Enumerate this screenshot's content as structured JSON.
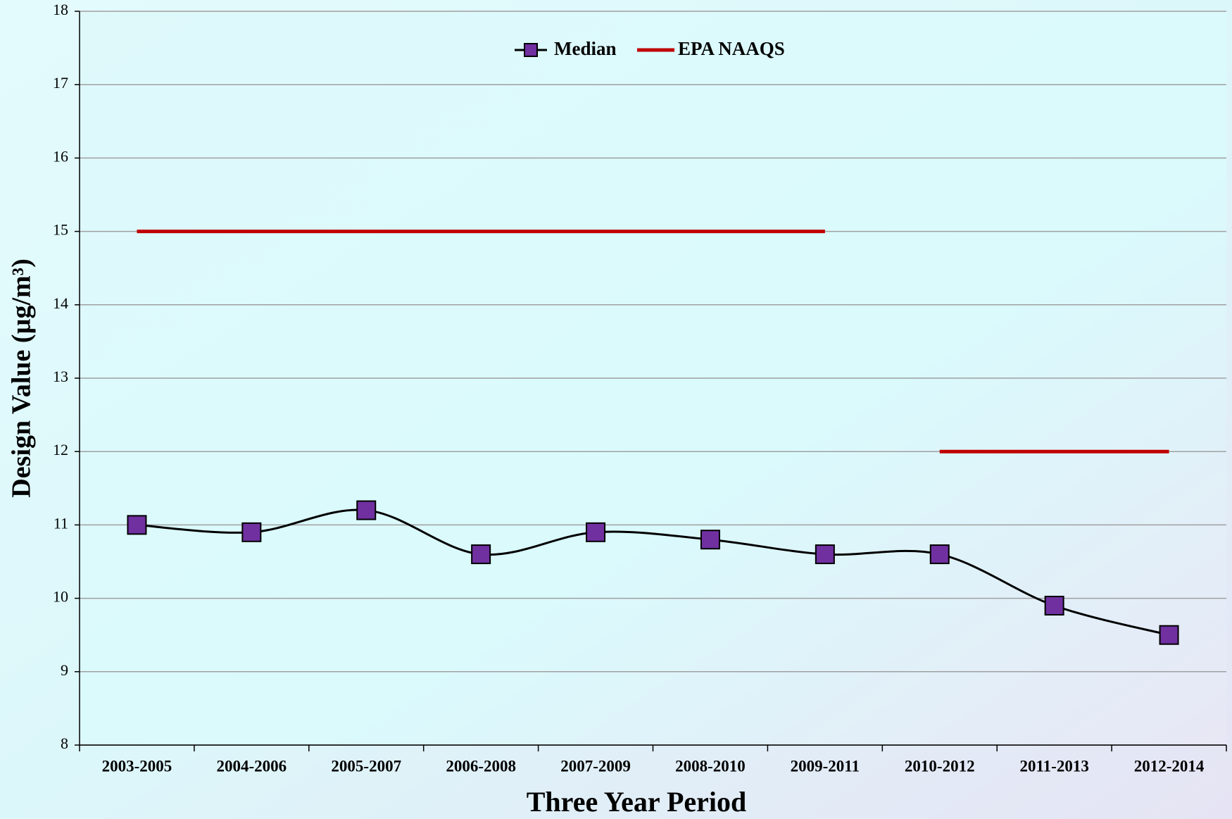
{
  "chart_data": {
    "type": "line",
    "x_label": "Three Year Period",
    "y_label": "Design Value (µg/m³)",
    "categories": [
      "2003-2005",
      "2004-2006",
      "2005-2007",
      "2006-2008",
      "2007-2009",
      "2008-2010",
      "2009-2011",
      "2010-2012",
      "2011-2013",
      "2012-2014"
    ],
    "series": [
      {
        "name": "Median",
        "color": "#7030a0",
        "line_color": "#000000",
        "smooth": true,
        "marker": "square",
        "values": [
          11,
          10.9,
          11.2,
          10.6,
          10.9,
          10.8,
          10.6,
          10.6,
          9.9,
          9.5
        ]
      },
      {
        "name": "EPA NAAQS",
        "color": "#c00000",
        "drawstyle": "levels",
        "values": [
          15,
          15,
          15,
          15,
          15,
          15,
          15,
          12,
          12,
          12
        ]
      }
    ],
    "ylim": [
      8,
      18
    ],
    "yticks": [
      8,
      9,
      10,
      11,
      12,
      13,
      14,
      15,
      16,
      17,
      18
    ],
    "grid": true,
    "legend": "top"
  }
}
